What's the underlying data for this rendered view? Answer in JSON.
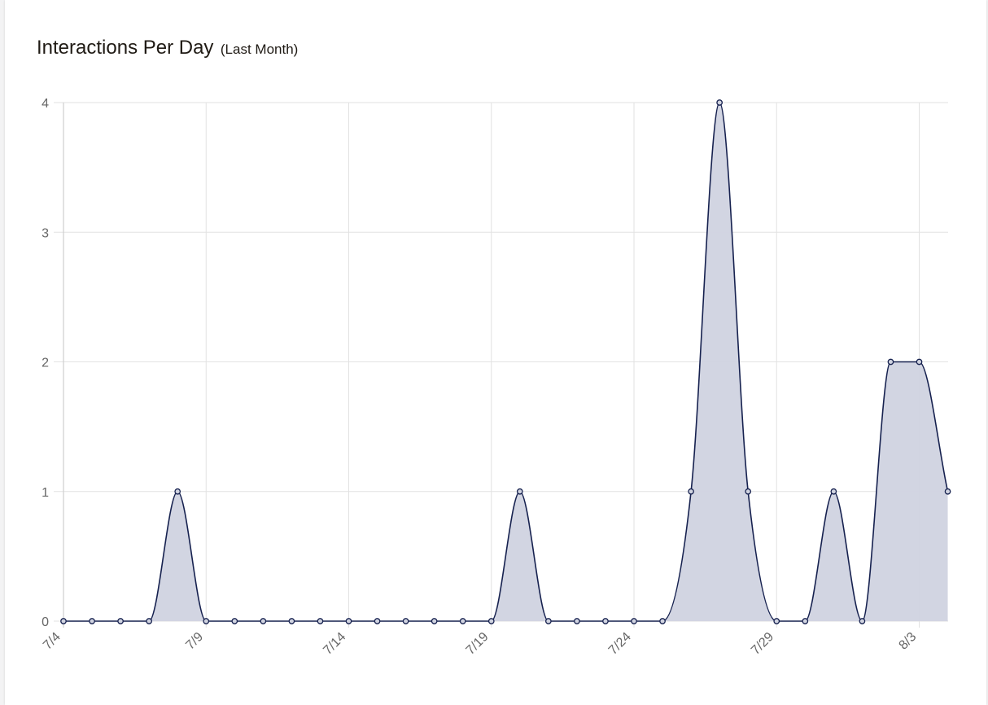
{
  "header": {
    "title": "Interactions Per Day",
    "subtitle": "(Last Month)"
  },
  "colors": {
    "line": "#16214f",
    "fill": "#d0d3e0",
    "grid": "#e2e2e2",
    "tick_text": "#666666"
  },
  "chart_data": {
    "type": "area",
    "title": "Interactions Per Day",
    "subtitle": "(Last Month)",
    "xlabel": "",
    "ylabel": "",
    "x": [
      "7/4",
      "7/5",
      "7/6",
      "7/7",
      "7/8",
      "7/9",
      "7/10",
      "7/11",
      "7/12",
      "7/13",
      "7/14",
      "7/15",
      "7/16",
      "7/17",
      "7/18",
      "7/19",
      "7/20",
      "7/21",
      "7/22",
      "7/23",
      "7/24",
      "7/25",
      "7/26",
      "7/27",
      "7/28",
      "7/29",
      "7/30",
      "7/31",
      "8/1",
      "8/2",
      "8/3",
      "8/4"
    ],
    "x_tick_labels": [
      "7/4",
      "7/9",
      "7/14",
      "7/19",
      "7/24",
      "7/29",
      "8/3"
    ],
    "y_ticks": [
      0,
      1,
      2,
      3,
      4
    ],
    "ylim": [
      0,
      4
    ],
    "grid": true,
    "series": [
      {
        "values": [
          0,
          0,
          0,
          0,
          1,
          0,
          0,
          0,
          0,
          0,
          0,
          0,
          0,
          0,
          0,
          0,
          1,
          0,
          0,
          0,
          0,
          0,
          1,
          4,
          1,
          0,
          0,
          1,
          0,
          2,
          2,
          1
        ]
      }
    ]
  }
}
